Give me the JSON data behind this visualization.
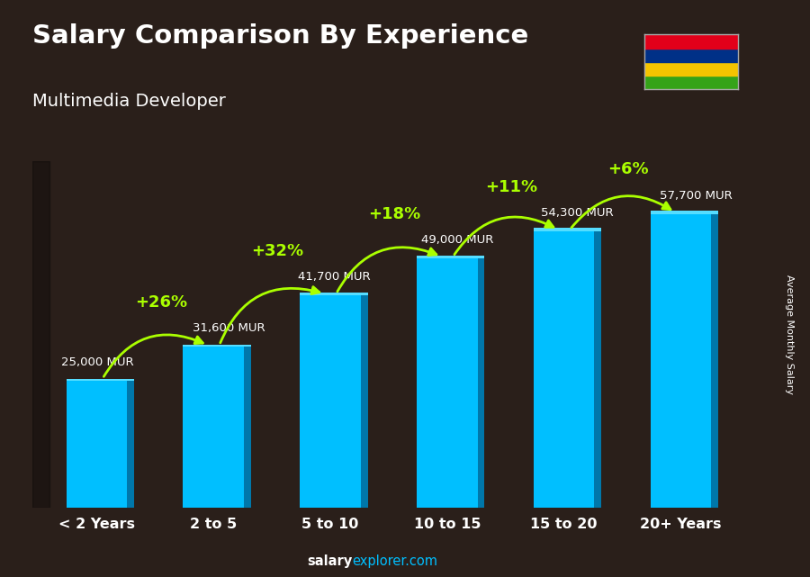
{
  "title": "Salary Comparison By Experience",
  "subtitle": "Multimedia Developer",
  "categories": [
    "< 2 Years",
    "2 to 5",
    "5 to 10",
    "10 to 15",
    "15 to 20",
    "20+ Years"
  ],
  "values": [
    25000,
    31600,
    41700,
    49000,
    54300,
    57700
  ],
  "value_labels": [
    "25,000 MUR",
    "31,600 MUR",
    "41,700 MUR",
    "49,000 MUR",
    "54,300 MUR",
    "57,700 MUR"
  ],
  "pct_labels": [
    "+26%",
    "+32%",
    "+18%",
    "+11%",
    "+6%"
  ],
  "bar_color": "#00bfff",
  "bar_side_color": "#0077aa",
  "bar_top_color": "#55ddff",
  "bg_color": "#2a1f1a",
  "title_color": "#ffffff",
  "subtitle_color": "#ffffff",
  "label_color": "#ffffff",
  "pct_color": "#aaff00",
  "arrow_color": "#aaff00",
  "ylabel": "Average Monthly Salary",
  "source_bold": "salary",
  "source_light": "explorer.com",
  "ylim_max": 68000,
  "flag_colors": [
    "#e2001a",
    "#003087",
    "#f5c400",
    "#35a318"
  ],
  "flag_stripe_order": [
    3,
    2,
    1,
    0
  ]
}
